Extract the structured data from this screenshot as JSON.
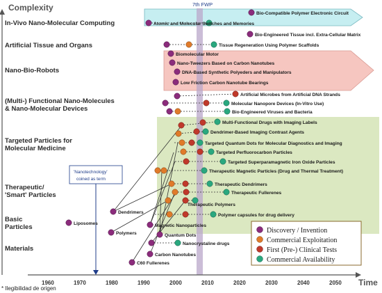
{
  "axis": {
    "y_title": "Complexity",
    "x_title": "Time",
    "ticks": [
      "1960",
      "1970",
      "1980",
      "1990",
      "2000",
      "2010",
      "2020",
      "2030",
      "2040",
      "2050"
    ]
  },
  "fwp_label": "7th FWP",
  "annotation": "'Nanotechnology' coined as term",
  "footnote": "* Ilegibilidad de origen",
  "categories": [
    "In-Vivo Nano-Molecular Computing",
    "Artificial Tissue and Organs",
    "Nano-Bio-Robots",
    "(Multi-) Functional Nano-Molecules",
    "& Nano-Molecular Devices",
    "Targeted Particles for",
    "Molecular Medicine",
    "Therapeutic/",
    "'Smart' Particles",
    "Basic",
    "Particles",
    "Materials"
  ],
  "legend": {
    "items": [
      {
        "label": "Discovery / Invention",
        "color": "#8b2c7c"
      },
      {
        "label": "Commercial Exploitation",
        "color": "#e07b2a"
      },
      {
        "label": "First (Pre-) Clinical Tests",
        "color": "#c0392b"
      },
      {
        "label": "Commercial Availability",
        "color": "#2aa87f"
      }
    ]
  },
  "milestones": [
    "Bio-Compatible Polymer Electronic Circuit",
    "Atomic and Molecular Switches and Memories",
    "Bio-Engineered Tissue incl. Extra-Cellular Matrix",
    "Tissue Regeneration Using Polymer Scaffolds",
    "Biomolecular Motor",
    "Nano-Tweezers Based on Carbon Nanotubes",
    "DNA-Based Synthetic Polyeders and Manipulators",
    "Low Friction Carbon Nanotube Bearings",
    "Artificial Microbes from Artificial DNA Strands",
    "Molecular Nanopore Devices (In-Vitro Use)",
    "Bio-Engineered Viruses and Bacteria",
    "Multi-Functional Drugs with Imaging Labels",
    "Dendrimer-Based Imaging Contrast Agents",
    "Targeted Quantum Dots for Molecular Diagnostics and Imaging",
    "Targeted Perfluorocarbon Particles",
    "Targeted Superparamagnetic Iron Oxide Particles",
    "Therapeutic Magnetic Particles (Drug and Thermal Treatment)",
    "Therapeutic Dendrimers",
    "Therapeutic Fullerenes",
    "Therapeutic Polymers",
    "Polymer capsules for drug delivery",
    "Dendrimers",
    "Liposomes",
    "Polymers",
    "Magnetic Nanoparticles",
    "Quantum Dots",
    "Nanocrystaline drugs",
    "Carbon Nanotubes",
    "C60 Fullerenes"
  ],
  "colors": {
    "discovery": "#8b2c7c",
    "exploitation": "#e07b2a",
    "clinical": "#c0392b",
    "availability": "#2aa87f",
    "green_region": "#dbe8c1",
    "pink_arrow": "#f6c6c0",
    "cyan_arrow": "#c6eef1",
    "fwp_band": "#b9a7c9"
  }
}
